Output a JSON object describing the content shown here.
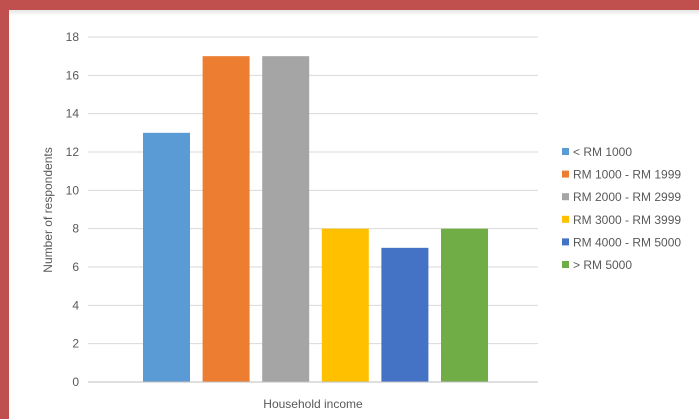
{
  "chart_data": {
    "type": "bar",
    "title": "",
    "xlabel": "Household income",
    "ylabel": "Number of respondents",
    "ylim": [
      0,
      18
    ],
    "yticks": [
      0,
      2,
      4,
      6,
      8,
      10,
      12,
      14,
      16,
      18
    ],
    "grid": true,
    "legend_position": "right",
    "categories": [
      "< RM 1000",
      "RM 1000 - RM 1999",
      "RM 2000 - RM 2999",
      "RM 3000 - RM 3999",
      "RM 4000 - RM 5000",
      "> RM 5000"
    ],
    "values": [
      13,
      17,
      17,
      8,
      7,
      8
    ],
    "colors": [
      "#5b9bd5",
      "#ed7d31",
      "#a5a5a5",
      "#ffc000",
      "#4472c4",
      "#70ad47"
    ]
  }
}
